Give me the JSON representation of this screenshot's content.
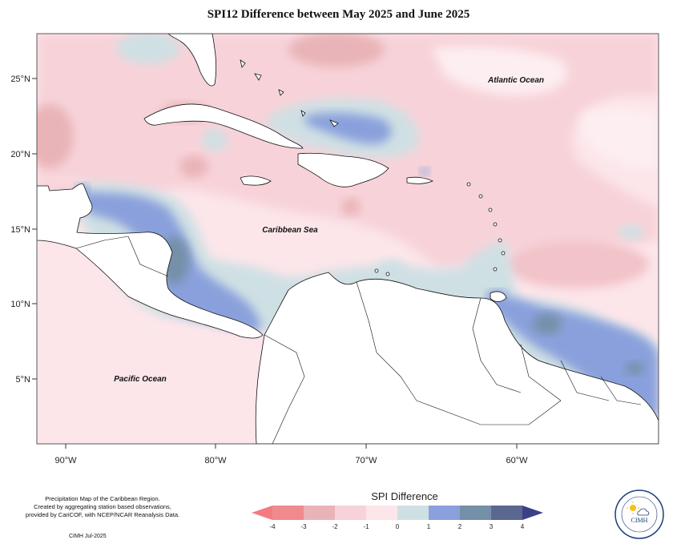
{
  "title": "SPI12 Difference between May 2025 and June 2025",
  "map": {
    "lat_ticks": [
      "25°N",
      "20°N",
      "15°N",
      "10°N",
      "5°N"
    ],
    "lon_ticks": [
      "90°W",
      "80°W",
      "70°W",
      "60°W"
    ],
    "ocean_labels": {
      "atlantic": "Atlantic Ocean",
      "caribbean": "Caribbean Sea",
      "pacific": "Pacific Ocean"
    }
  },
  "credits": {
    "line1": "Precipitation Map of the Caribbean Region.",
    "line2": "Created by aggregating station based observations,",
    "line3": "provided by CariCOF, with NCEP/NCAR Reanalysis Data.",
    "cimh_date": "CIMH Jul-2025"
  },
  "legend": {
    "title": "SPI Difference",
    "ticks": [
      "-4",
      "-3",
      "-2",
      "-1",
      "0",
      "1",
      "2",
      "3",
      "4"
    ],
    "colors": [
      "#f08a8f",
      "#e9b4b8",
      "#f7d3d9",
      "#fce6ea",
      "#cfe0e4",
      "#8aa0dc",
      "#7490a8",
      "#5a6890"
    ],
    "arrow_low": "#f47a82",
    "arrow_high": "#3d3f86"
  },
  "logo": {
    "label": "CIMH"
  }
}
